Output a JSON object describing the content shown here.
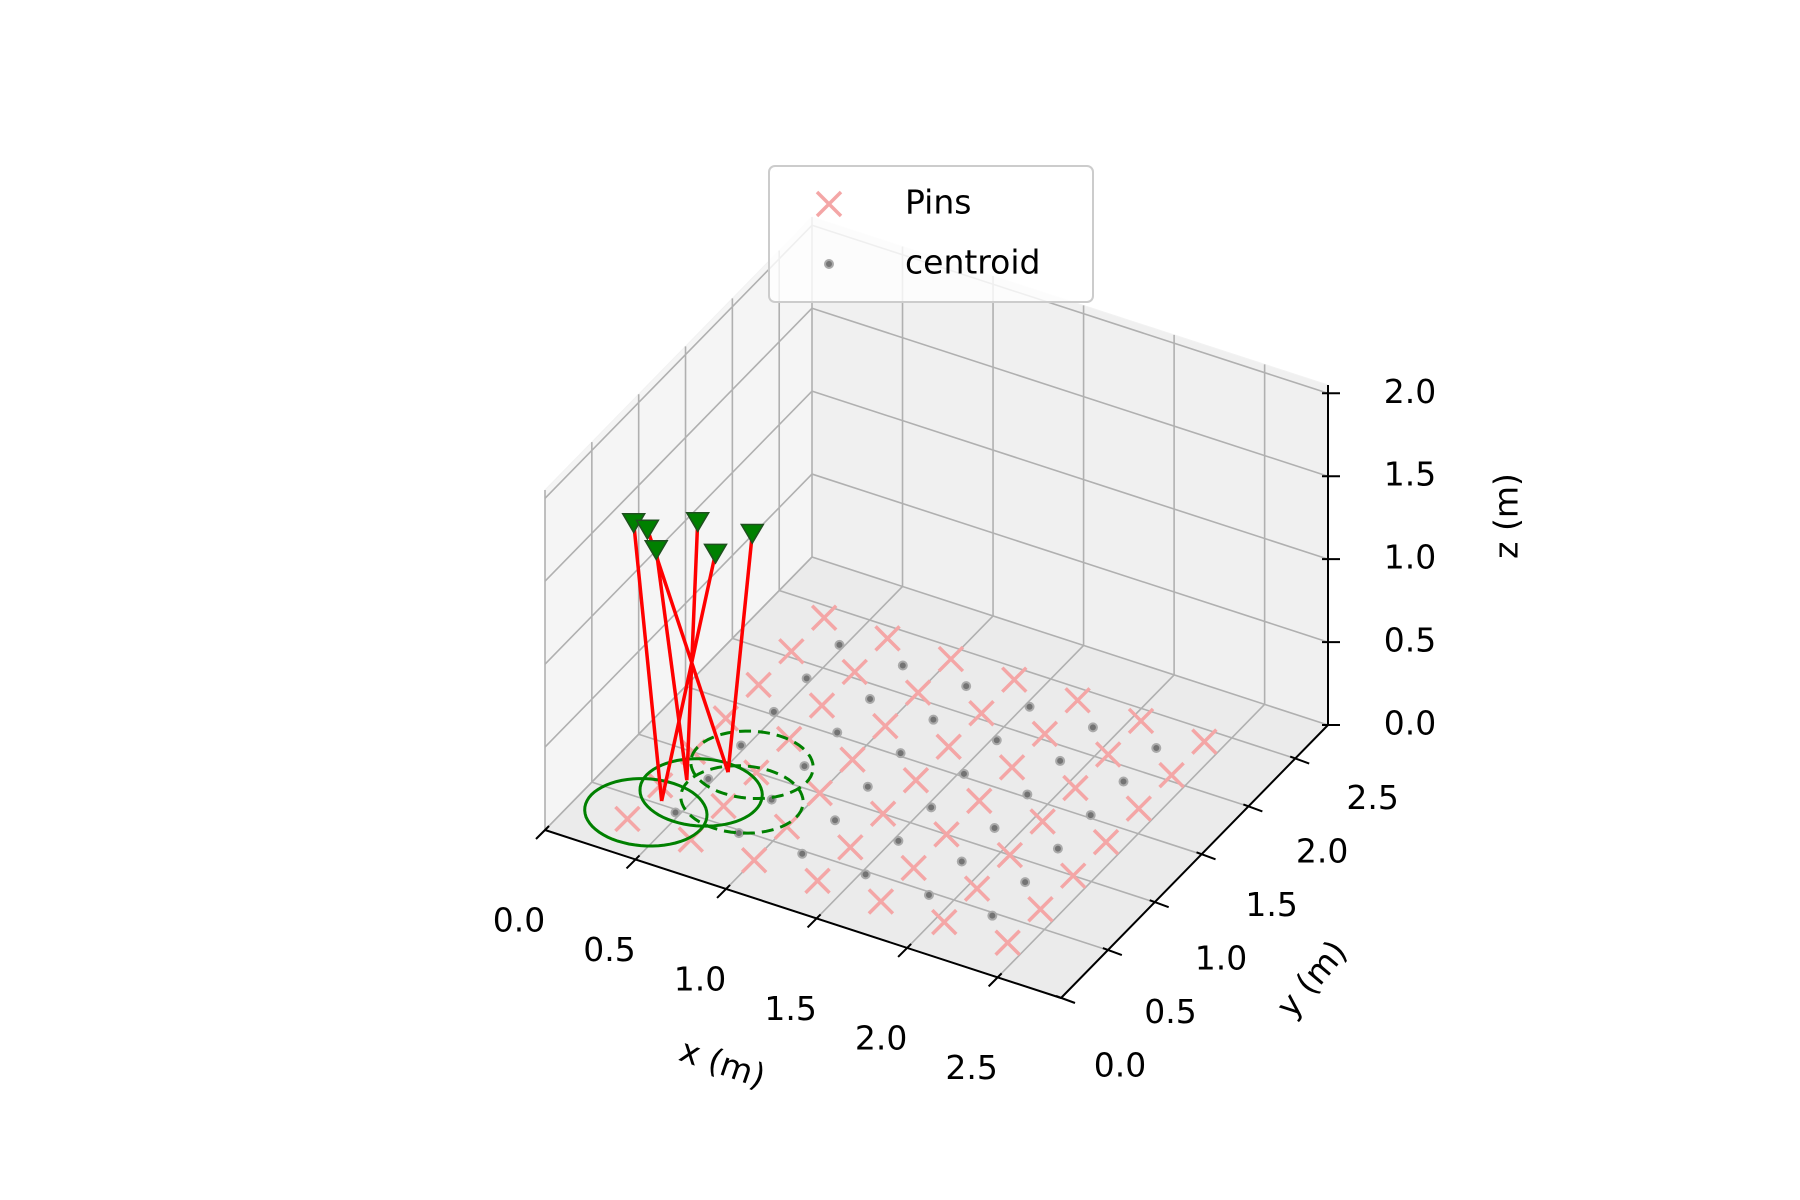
{
  "chart_data": {
    "type": "scatter3d",
    "xlabel": "x (m)",
    "ylabel": "y (m)",
    "zlabel": "z (m)",
    "xlim": [
      0,
      2.85
    ],
    "ylim": [
      0,
      2.85
    ],
    "zlim": [
      0,
      2.05
    ],
    "xticks": [
      {
        "value": 0,
        "label": "0.0"
      },
      0.5,
      {
        "value": 1,
        "label": "1.0"
      },
      1.5,
      {
        "value": 2,
        "label": "2.0"
      },
      2.5
    ],
    "yticks": [
      {
        "value": 0,
        "label": "0.0"
      },
      0.5,
      {
        "value": 1,
        "label": "1.0"
      },
      1.5,
      {
        "value": 2,
        "label": "2.0"
      },
      2.5
    ],
    "zticks": [
      {
        "value": 0,
        "label": "0.0"
      },
      0.5,
      {
        "value": 1,
        "label": "1.0"
      },
      1.5,
      {
        "value": 2,
        "label": "2.0"
      }
    ],
    "grid": true,
    "legend": "upper center",
    "series": [
      {
        "name": "Pins",
        "color": "#f4a6a6",
        "marker": "x",
        "x": [
          0.3,
          0.3,
          0.3,
          0.3,
          0.3,
          0.3,
          0.3,
          0.65,
          0.65,
          0.65,
          0.65,
          0.65,
          0.65,
          0.65,
          1,
          1,
          1,
          1,
          1,
          1,
          1,
          1.35,
          1.35,
          1.35,
          1.35,
          1.35,
          1.35,
          1.35,
          1.7,
          1.7,
          1.7,
          1.7,
          1.7,
          1.7,
          1.7,
          2.05,
          2.05,
          2.05,
          2.05,
          2.05,
          2.05,
          2.05,
          2.4,
          2.4,
          2.4,
          2.4,
          2.4,
          2.4,
          2.4
        ],
        "y": [
          0.3,
          0.65,
          1,
          1.35,
          1.7,
          2.05,
          2.4,
          0.3,
          0.65,
          1,
          1.35,
          1.7,
          2.05,
          2.4,
          0.3,
          0.65,
          1,
          1.35,
          1.7,
          2.05,
          2.4,
          0.3,
          0.65,
          1,
          1.35,
          1.7,
          2.05,
          2.4,
          0.3,
          0.65,
          1,
          1.35,
          1.7,
          2.05,
          2.4,
          0.3,
          0.65,
          1,
          1.35,
          1.7,
          2.05,
          2.4,
          0.3,
          0.65,
          1,
          1.35,
          1.7,
          2.05,
          2.4
        ],
        "z": [
          0,
          0,
          0,
          0,
          0,
          0,
          0,
          0,
          0,
          0,
          0,
          0,
          0,
          0,
          0,
          0,
          0,
          0,
          0,
          0,
          0,
          0,
          0,
          0,
          0,
          0,
          0,
          0,
          0,
          0,
          0,
          0,
          0,
          0,
          0,
          0,
          0,
          0,
          0,
          0,
          0,
          0,
          0,
          0,
          0,
          0,
          0,
          0,
          0
        ]
      },
      {
        "name": "centroid",
        "color": "#666666",
        "marker": "o",
        "x": [
          0.475,
          0.475,
          0.475,
          0.475,
          0.475,
          0.475,
          0.825,
          0.825,
          0.825,
          0.825,
          0.825,
          0.825,
          1.175,
          1.175,
          1.175,
          1.175,
          1.175,
          1.175,
          1.525,
          1.525,
          1.525,
          1.525,
          1.525,
          1.525,
          1.875,
          1.875,
          1.875,
          1.875,
          1.875,
          1.875,
          2.225,
          2.225,
          2.225,
          2.225,
          2.225,
          2.225
        ],
        "y": [
          0.475,
          0.825,
          1.175,
          1.525,
          1.875,
          2.225,
          0.475,
          0.825,
          1.175,
          1.525,
          1.875,
          2.225,
          0.475,
          0.825,
          1.175,
          1.525,
          1.875,
          2.225,
          0.475,
          0.825,
          1.175,
          1.525,
          1.875,
          2.225,
          0.475,
          0.825,
          1.175,
          1.525,
          1.875,
          2.225,
          0.475,
          0.825,
          1.175,
          1.525,
          1.875,
          2.225
        ],
        "z": [
          0,
          0,
          0,
          0,
          0,
          0,
          0,
          0,
          0,
          0,
          0,
          0,
          0,
          0,
          0,
          0,
          0,
          0,
          0,
          0,
          0,
          0,
          0,
          0,
          0,
          0,
          0,
          0,
          0,
          0,
          0,
          0,
          0,
          0,
          0,
          0
        ]
      }
    ],
    "circle_color": "#008000",
    "circles": [
      {
        "x": 0.35,
        "y": 0.4,
        "r": 0.3,
        "dashed": false
      },
      {
        "x": 0.5,
        "y": 0.7,
        "r": 0.3,
        "dashed": false
      },
      {
        "x": 0.7,
        "y": 0.75,
        "r": 0.3,
        "dashed": true
      },
      {
        "x": 0.6,
        "y": 1.05,
        "r": 0.3,
        "dashed": true
      }
    ],
    "cable_color": "#ff0000",
    "anchor_color": "#008000",
    "cables": [
      {
        "x": [
          0.37,
          0.05
        ],
        "y": [
          0.53,
          0.85
        ],
        "z": [
          0,
          1.38
        ]
      },
      {
        "x": [
          0.37,
          0.45
        ],
        "y": [
          0.53,
          0.95
        ],
        "z": [
          0,
          1.28
        ]
      },
      {
        "x": [
          0.39,
          0.2
        ],
        "y": [
          0.76,
          0.8
        ],
        "z": [
          0,
          1.3
        ]
      },
      {
        "x": [
          0.39,
          0.3
        ],
        "y": [
          0.76,
          1.05
        ],
        "z": [
          0,
          1.36
        ]
      },
      {
        "x": [
          0.53,
          0.1
        ],
        "y": [
          0.93,
          0.9
        ],
        "z": [
          0,
          1.33
        ]
      },
      {
        "x": [
          0.53,
          0.55
        ],
        "y": [
          0.93,
          1.15
        ],
        "z": [
          0,
          1.32
        ]
      }
    ]
  }
}
